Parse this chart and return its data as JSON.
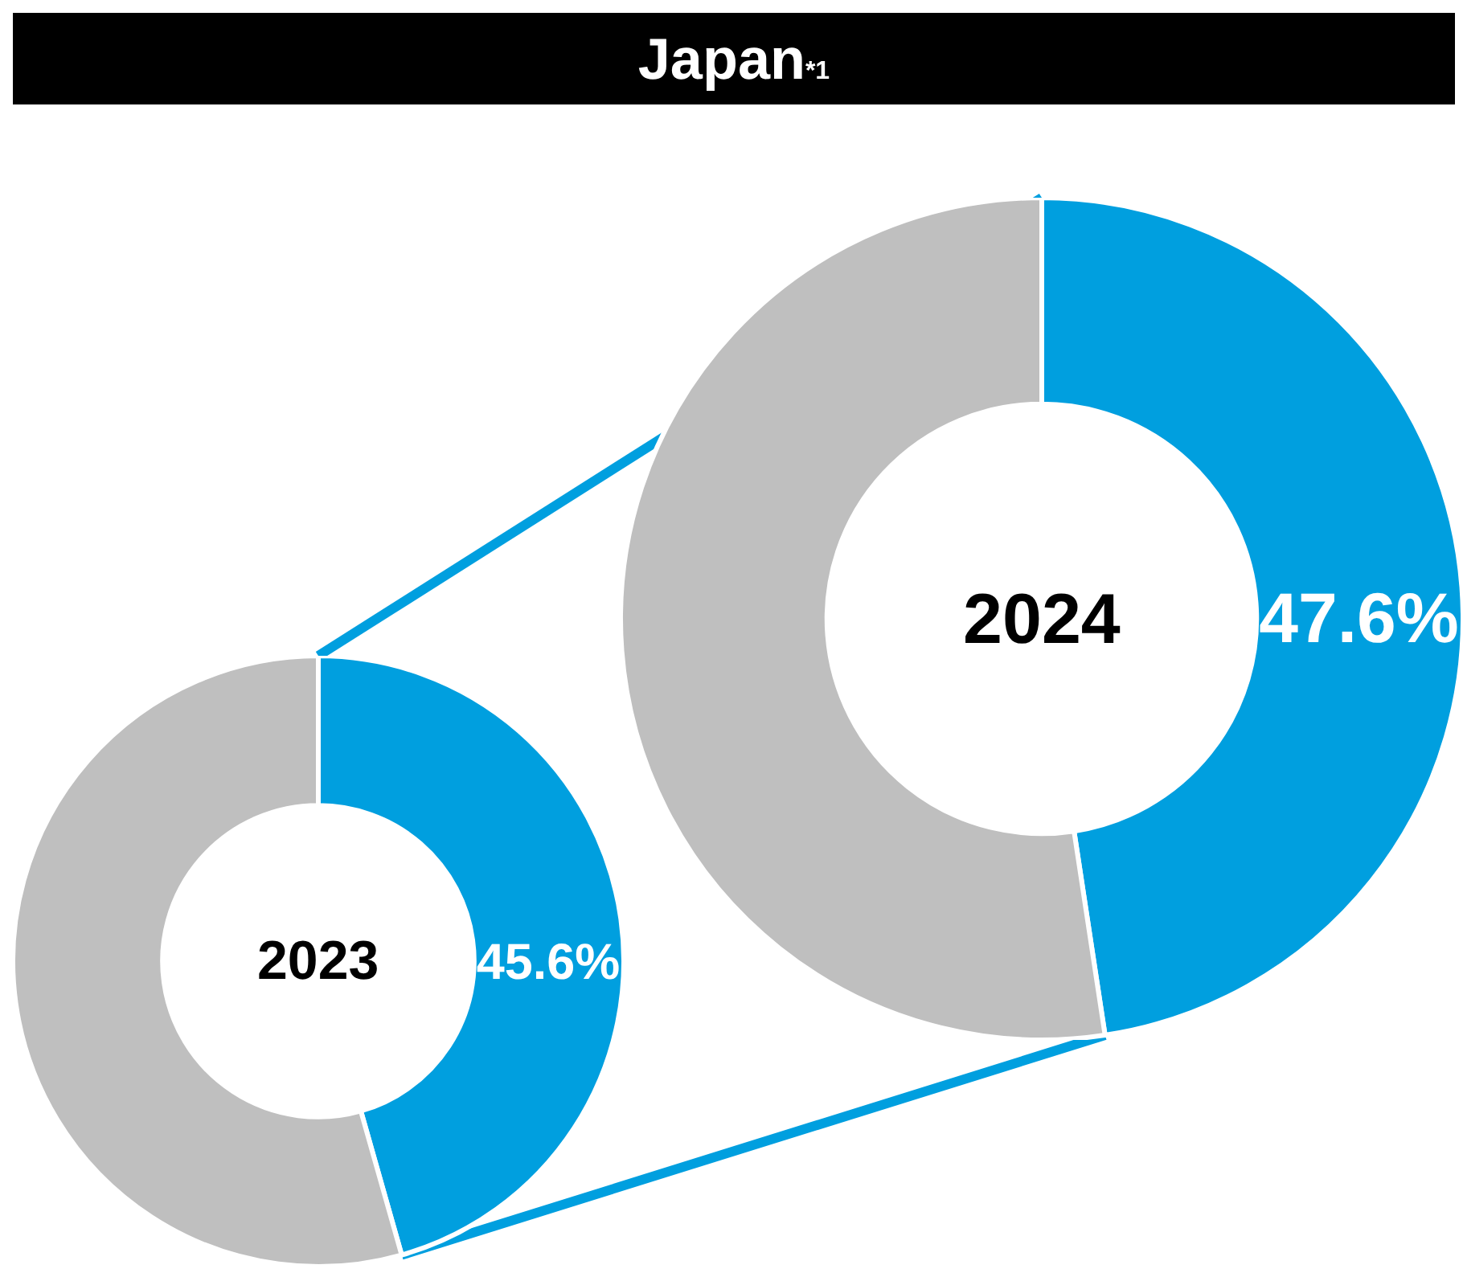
{
  "chart_data": [
    {
      "type": "donut",
      "categories": [
        null,
        null
      ],
      "values": [
        45.6,
        54.4
      ],
      "colors": [
        "#009fdf",
        "#bfbfbf"
      ],
      "value_labels": [
        "45.6%",
        null
      ],
      "annotations": [
        "2023"
      ],
      "legend": false
    },
    {
      "type": "donut",
      "title": "Japan$_{*1}$",
      "categories": [
        null,
        null
      ],
      "values": [
        47.6,
        52.4
      ],
      "colors": [
        "#009fdf",
        "#bfbfbf"
      ],
      "value_labels": [
        "47.6%",
        null
      ],
      "annotations": [
        "2024"
      ],
      "legend": false
    }
  ]
}
